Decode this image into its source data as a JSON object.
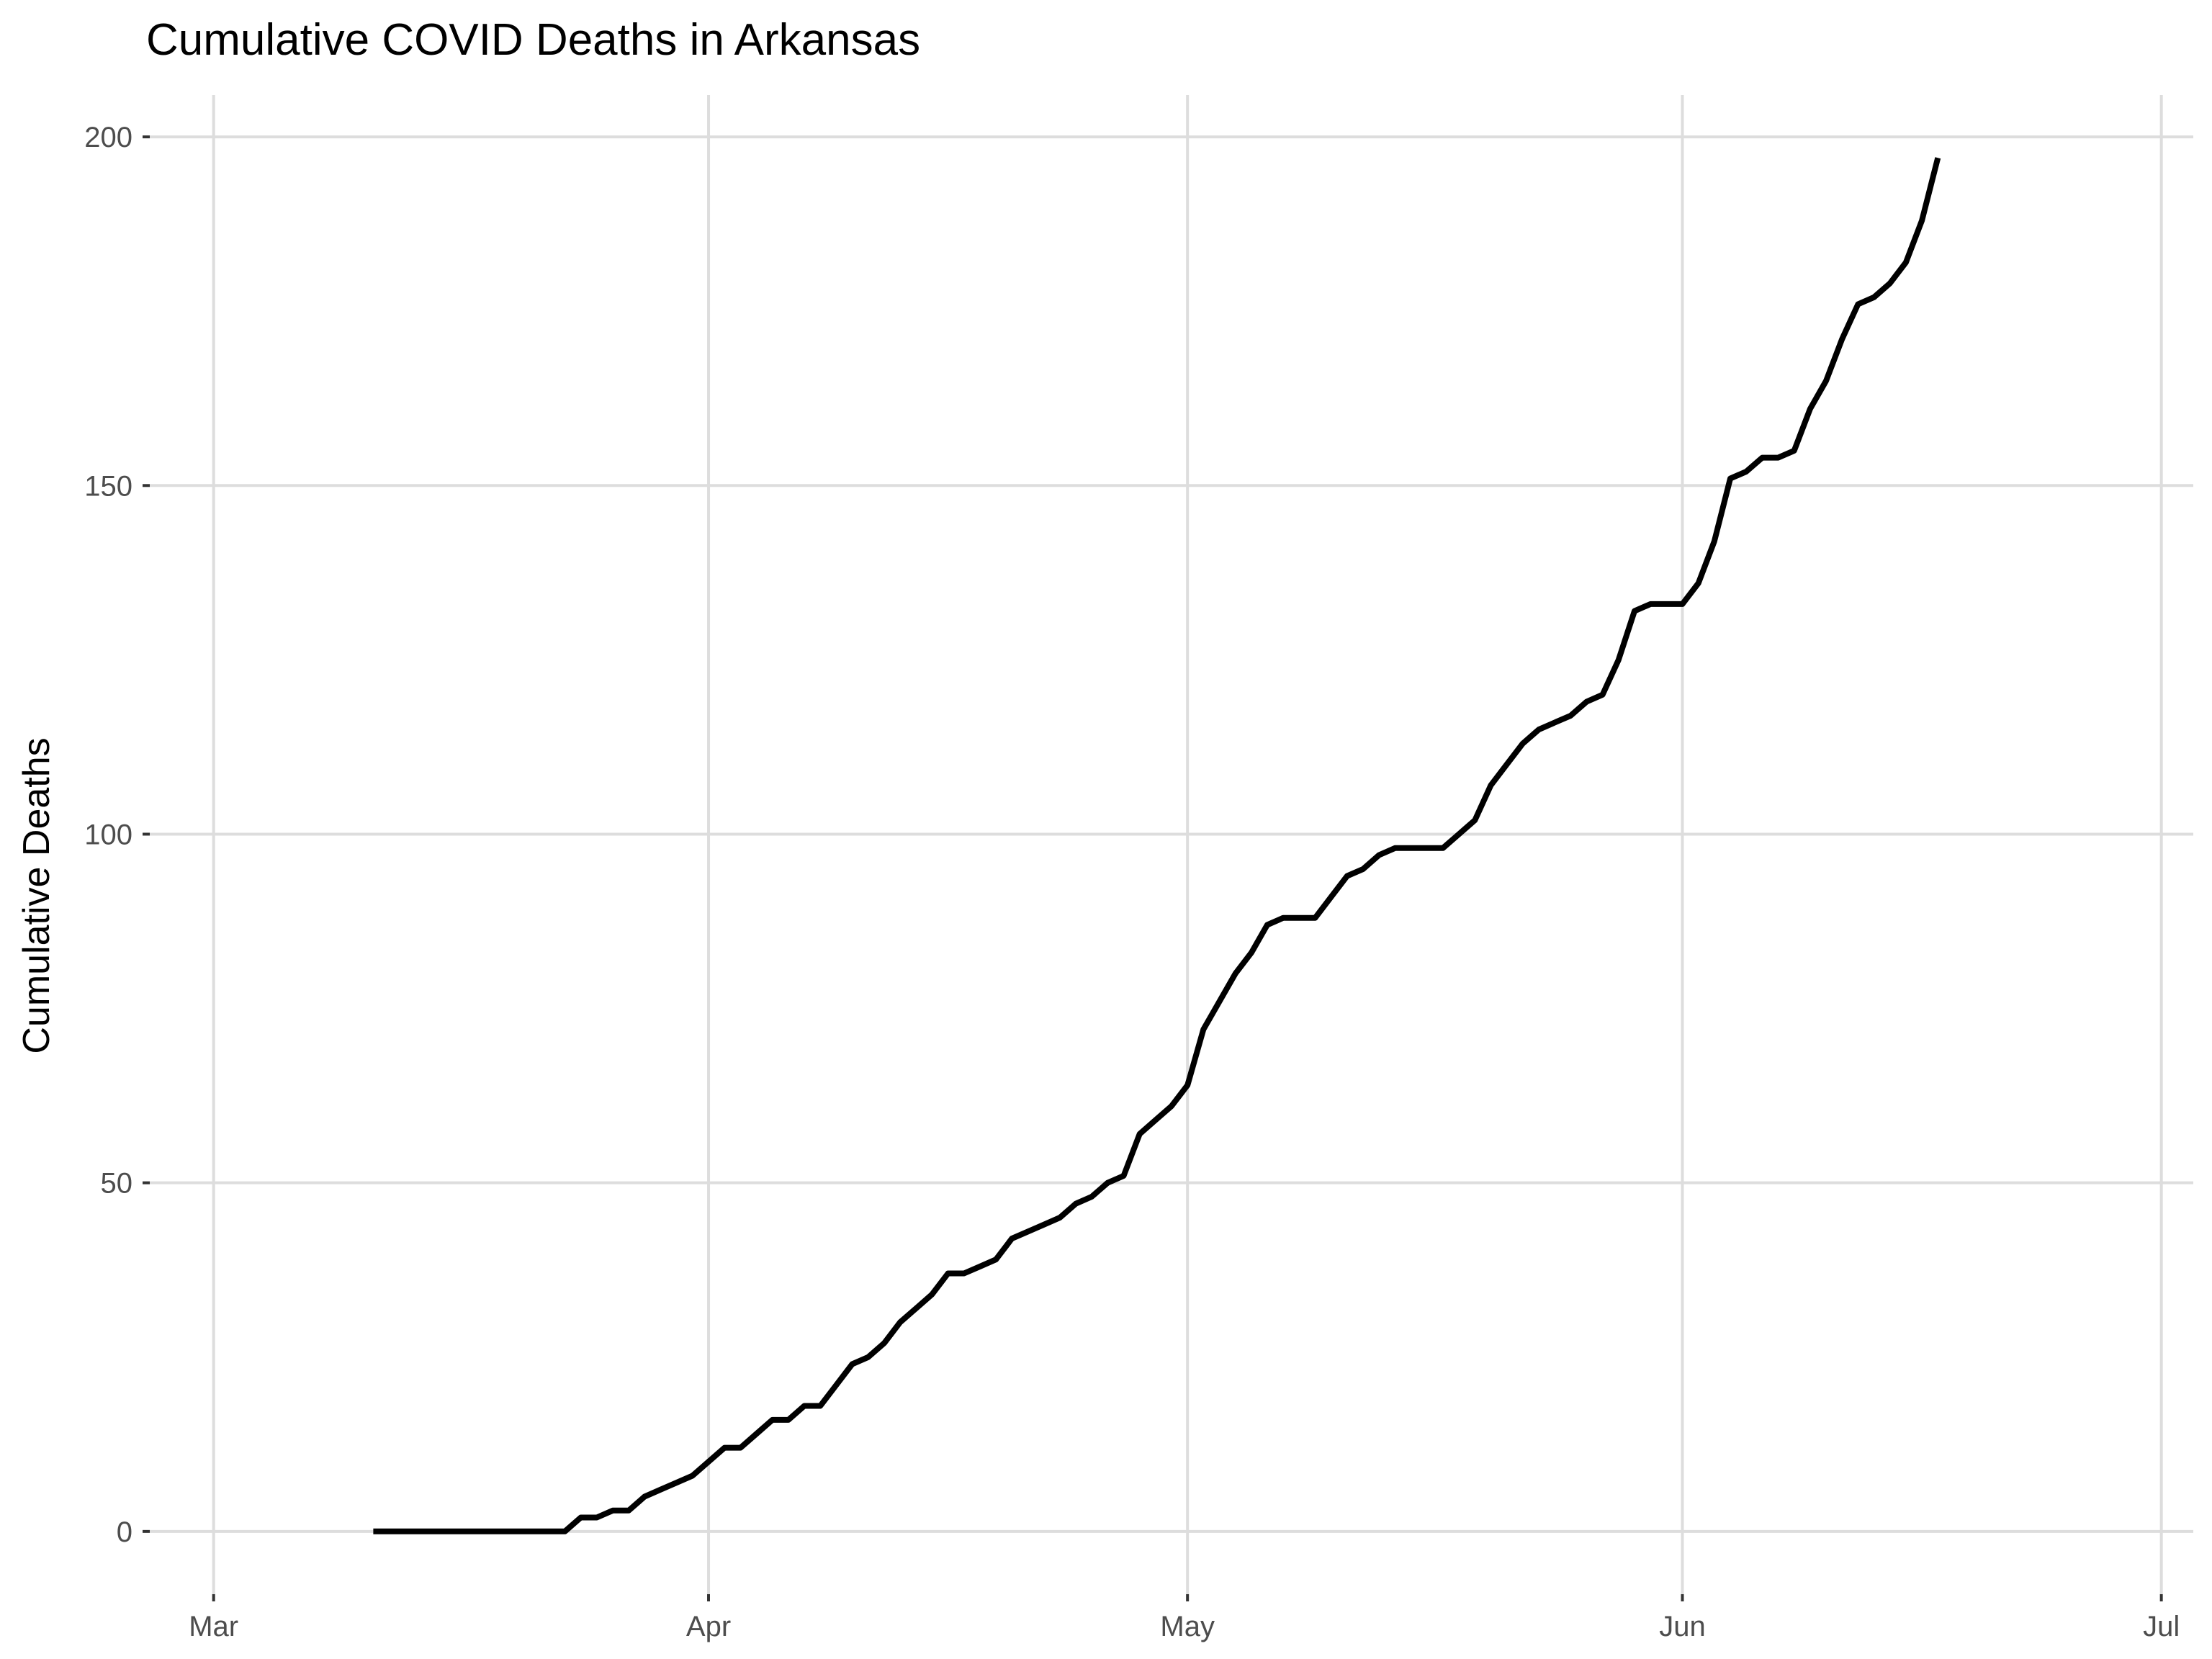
{
  "chart_data": {
    "type": "line",
    "title": "Cumulative COVID Deaths in Arkansas",
    "xlabel": "",
    "ylabel": "Cumulative Deaths",
    "x_ticks": [
      {
        "label": "Mar",
        "date": "2020-03-01"
      },
      {
        "label": "Apr",
        "date": "2020-04-01"
      },
      {
        "label": "May",
        "date": "2020-05-01"
      },
      {
        "label": "Jun",
        "date": "2020-06-01"
      },
      {
        "label": "Jul",
        "date": "2020-07-01"
      }
    ],
    "y_ticks": [
      0,
      50,
      100,
      150,
      200
    ],
    "xlim": [
      "2020-02-26",
      "2020-07-03"
    ],
    "ylim": [
      -9,
      206
    ],
    "grid": true,
    "legend": "none",
    "colors": {
      "line": "#000000",
      "grid": "#dddddd"
    },
    "x": [
      "2020-03-11",
      "2020-03-12",
      "2020-03-13",
      "2020-03-14",
      "2020-03-15",
      "2020-03-16",
      "2020-03-17",
      "2020-03-18",
      "2020-03-19",
      "2020-03-20",
      "2020-03-21",
      "2020-03-22",
      "2020-03-23",
      "2020-03-24",
      "2020-03-25",
      "2020-03-26",
      "2020-03-27",
      "2020-03-28",
      "2020-03-29",
      "2020-03-30",
      "2020-03-31",
      "2020-04-01",
      "2020-04-02",
      "2020-04-03",
      "2020-04-04",
      "2020-04-05",
      "2020-04-06",
      "2020-04-07",
      "2020-04-08",
      "2020-04-09",
      "2020-04-10",
      "2020-04-11",
      "2020-04-12",
      "2020-04-13",
      "2020-04-14",
      "2020-04-15",
      "2020-04-16",
      "2020-04-17",
      "2020-04-18",
      "2020-04-19",
      "2020-04-20",
      "2020-04-21",
      "2020-04-22",
      "2020-04-23",
      "2020-04-24",
      "2020-04-25",
      "2020-04-26",
      "2020-04-27",
      "2020-04-28",
      "2020-04-29",
      "2020-04-30",
      "2020-05-01",
      "2020-05-02",
      "2020-05-03",
      "2020-05-04",
      "2020-05-05",
      "2020-05-06",
      "2020-05-07",
      "2020-05-08",
      "2020-05-09",
      "2020-05-10",
      "2020-05-11",
      "2020-05-12",
      "2020-05-13",
      "2020-05-14",
      "2020-05-15",
      "2020-05-16",
      "2020-05-17",
      "2020-05-18",
      "2020-05-19",
      "2020-05-20",
      "2020-05-21",
      "2020-05-22",
      "2020-05-23",
      "2020-05-24",
      "2020-05-25",
      "2020-05-26",
      "2020-05-27",
      "2020-05-28",
      "2020-05-29",
      "2020-05-30",
      "2020-05-31",
      "2020-06-01",
      "2020-06-02",
      "2020-06-03",
      "2020-06-04",
      "2020-06-05",
      "2020-06-06",
      "2020-06-07",
      "2020-06-08",
      "2020-06-09",
      "2020-06-10",
      "2020-06-11",
      "2020-06-12",
      "2020-06-13",
      "2020-06-14",
      "2020-06-15",
      "2020-06-16",
      "2020-06-17"
    ],
    "series": [
      {
        "values": [
          0,
          0,
          0,
          0,
          0,
          0,
          0,
          0,
          0,
          0,
          0,
          0,
          0,
          2,
          2,
          3,
          3,
          5,
          6,
          7,
          8,
          10,
          12,
          12,
          14,
          16,
          16,
          18,
          18,
          21,
          24,
          25,
          27,
          30,
          32,
          34,
          37,
          37,
          38,
          39,
          42,
          43,
          44,
          45,
          47,
          48,
          50,
          51,
          57,
          59,
          61,
          64,
          72,
          76,
          80,
          83,
          87,
          88,
          88,
          88,
          91,
          94,
          95,
          97,
          98,
          98,
          98,
          98,
          100,
          102,
          107,
          110,
          113,
          115,
          116,
          117,
          119,
          120,
          125,
          132,
          133,
          133,
          133,
          136,
          142,
          151,
          152,
          154,
          154,
          155,
          161,
          165,
          171,
          176,
          177,
          179,
          182,
          188,
          197
        ]
      }
    ]
  }
}
